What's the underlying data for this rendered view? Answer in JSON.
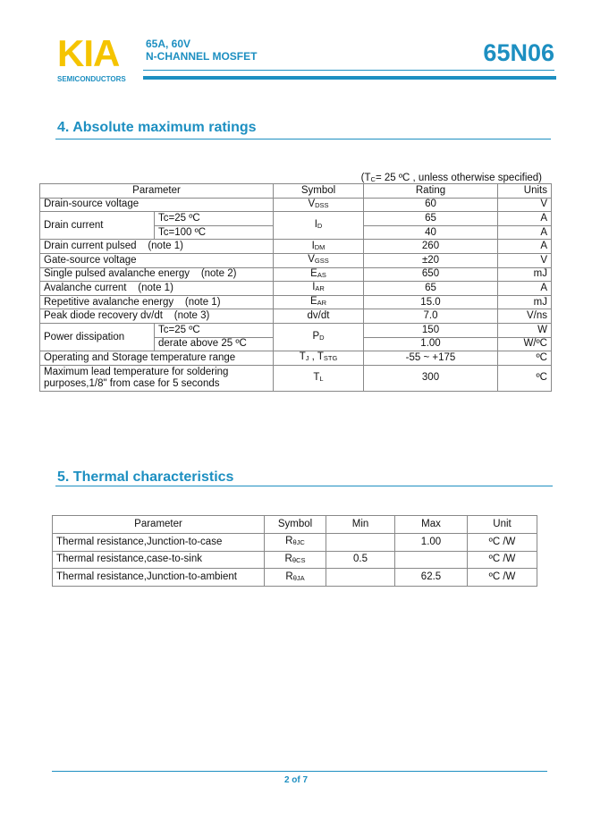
{
  "header": {
    "logo": "KIA",
    "logo_sub": "SEMICONDUCTORS",
    "line1": "65A, 60V",
    "line2": "N-CHANNEL MOSFET",
    "part": "65N06",
    "brand_color": "#1d8fc1",
    "logo_color": "#f5c400"
  },
  "section4": {
    "title": "4. Absolute maximum ratings",
    "note": {
      "pre": "(T",
      "sub": "C",
      "post": "= 25 ºC , unless otherwise specified)"
    },
    "headers": {
      "parameter": "Parameter",
      "symbol": "Symbol",
      "rating": "Rating",
      "units": "Units"
    },
    "rows": [
      {
        "param": "Drain-source voltage",
        "sym": "V",
        "sub": "DSS",
        "rating": "60",
        "unit": "V"
      },
      {
        "param": "Drain current",
        "cond1": "Tc=25 ºC",
        "cond2": "Tc=100 ºC",
        "sym": "I",
        "sub": "D",
        "rating1": "65",
        "rating2": "40",
        "unit1": "A",
        "unit2": "A"
      },
      {
        "param": "Drain current pulsed    (note 1)",
        "sym": "I",
        "sub": "DM",
        "rating": "260",
        "unit": "A"
      },
      {
        "param": "Gate-source voltage",
        "sym": "V",
        "sub": "GSS",
        "rating": "±20",
        "unit": "V"
      },
      {
        "param": "Single pulsed avalanche energy    (note 2)",
        "sym": "E",
        "sub": "AS",
        "rating": "650",
        "unit": "mJ"
      },
      {
        "param": "Avalanche current    (note 1)",
        "sym": "I",
        "sub": "AR",
        "rating": "65",
        "unit": "A"
      },
      {
        "param": "Repetitive avalanche energy    (note 1)",
        "sym": "E",
        "sub": "AR",
        "rating": "15.0",
        "unit": "mJ"
      },
      {
        "param": "Peak diode recovery dv/dt    (note 3)",
        "sym": "dv/dt",
        "sub": "",
        "rating": "7.0",
        "unit": "V/ns"
      },
      {
        "param": "Power dissipation",
        "cond1": "Tc=25 ºC",
        "cond2": "derate above 25 ºC",
        "sym": "P",
        "sub": "D",
        "rating1": "150",
        "rating2": "1.00",
        "unit1": "W",
        "unit2": "W/ºC"
      },
      {
        "param": "Operating and Storage temperature range",
        "sym": "T",
        "sub": "J",
        "sym2": " , T",
        "sub2": "STG",
        "rating": "-55 ~ +175",
        "unit": "ºC"
      },
      {
        "param": "Maximum lead temperature for soldering",
        "param2": "purposes,1/8\" from case for 5 seconds",
        "sym": "T",
        "sub": "L",
        "rating": "300",
        "unit": "ºC"
      }
    ]
  },
  "section5": {
    "title": "5. Thermal characteristics",
    "headers": {
      "parameter": "Parameter",
      "symbol": "Symbol",
      "min": "Min",
      "max": "Max",
      "unit": "Unit"
    },
    "rows": [
      {
        "param": "Thermal resistance,Junction-to-case",
        "sym": "R",
        "sub": "θJC",
        "min": "",
        "max": "1.00",
        "unit": "ºC /W"
      },
      {
        "param": "Thermal resistance,case-to-sink",
        "sym": "R",
        "sub": "θCS",
        "min": "0.5",
        "max": "",
        "unit": "ºC /W"
      },
      {
        "param": "Thermal resistance,Junction-to-ambient",
        "sym": "R",
        "sub": "θJA",
        "min": "",
        "max": "62.5",
        "unit": "ºC /W"
      }
    ]
  },
  "footer": {
    "page": "2 of 7"
  }
}
